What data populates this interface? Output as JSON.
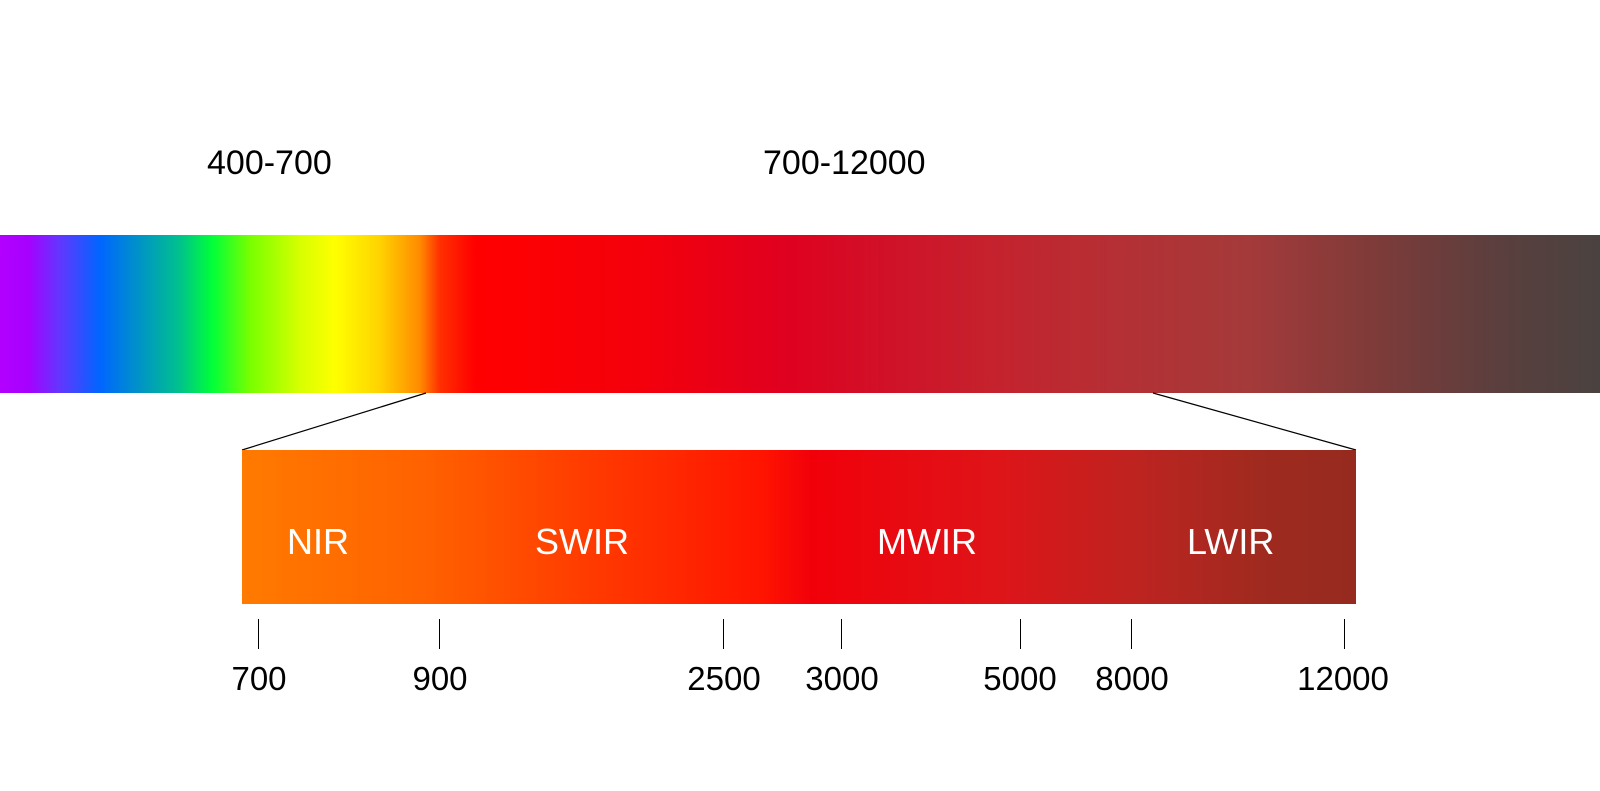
{
  "ranges": {
    "visible": "400-700",
    "infrared": "700-12000"
  },
  "bands": {
    "nir": "NIR",
    "swir": "SWIR",
    "mwir": "MWIR",
    "lwir": "LWIR"
  },
  "ticks": [
    "700",
    "900",
    "2500",
    "3000",
    "5000",
    "8000",
    "12000"
  ]
}
